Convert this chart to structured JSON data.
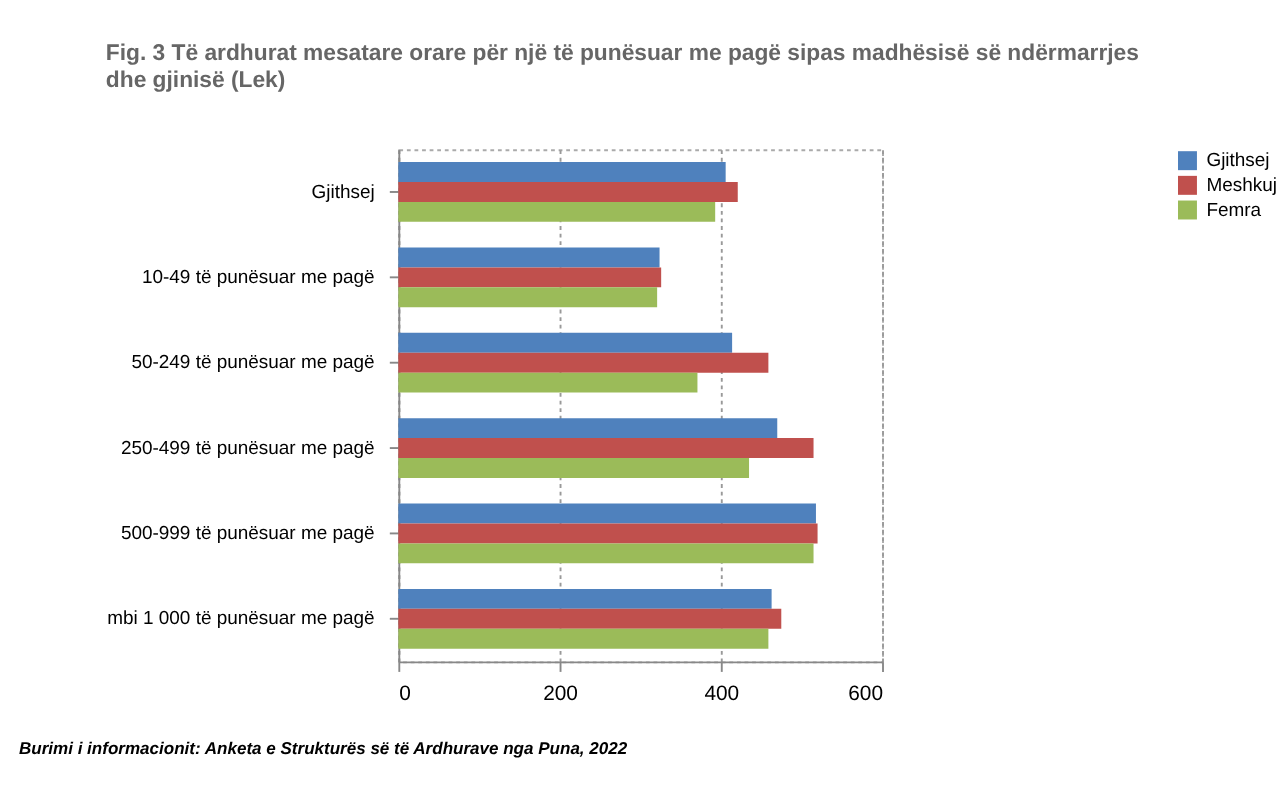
{
  "chart_data": {
    "type": "bar",
    "orientation": "horizontal",
    "title": "Fig. 3 Të ardhurat mesatare orare për një të punësuar me pagë sipas madhësisë së ndërmarrjes dhe gjinisë (Lek)",
    "categories": [
      "Gjithsej",
      "10-49 të punësuar me pagë",
      "50-249 të punësuar me pagë",
      "250-499 të punësuar me pagë",
      "500-999 të punësuar me pagë",
      "mbi 1 000 të punësuar me pagë"
    ],
    "series": [
      {
        "name": "Gjithsej",
        "color": "#4f81bd",
        "values": [
          406,
          324,
          414,
          470,
          518,
          463
        ]
      },
      {
        "name": "Meshkuj",
        "color": "#c0504d",
        "values": [
          421,
          326,
          459,
          515,
          520,
          475
        ]
      },
      {
        "name": "Femra",
        "color": "#9bbb59",
        "values": [
          393,
          321,
          371,
          435,
          515,
          459
        ]
      }
    ],
    "xlim": [
      0,
      600
    ],
    "xticks": [
      0,
      200,
      400,
      600
    ],
    "grid": "x",
    "legend": "right",
    "annotations": [
      "Burimi i informacionit: Anketa e Strukturës së të Ardhurave nga Puna, 2022"
    ]
  }
}
